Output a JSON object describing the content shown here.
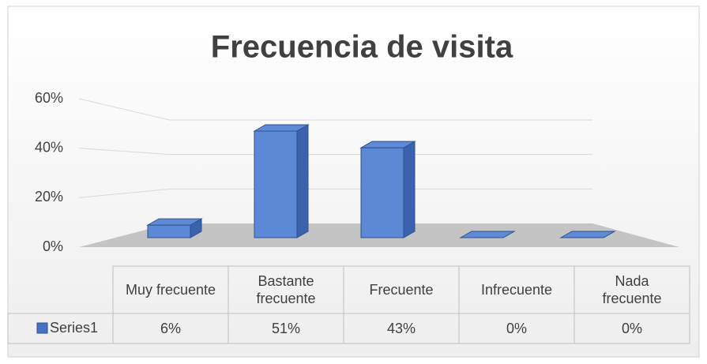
{
  "chart_data": {
    "type": "bar3d",
    "title": "Frecuencia de visita",
    "categories": [
      "Muy frecuente",
      "Bastante frecuente",
      "Frecuente",
      "Infrecuente",
      "Nada frecuente"
    ],
    "series": [
      {
        "name": "Series1",
        "color": "#4472c4",
        "values": [
          6,
          51,
          43,
          0,
          0
        ],
        "value_labels": [
          "6%",
          "51%",
          "43%",
          "0%",
          "0%"
        ]
      }
    ],
    "ylim": [
      0,
      60
    ],
    "yticks": [
      {
        "value": 0,
        "label": "0%"
      },
      {
        "value": 20,
        "label": "20%"
      },
      {
        "value": 40,
        "label": "40%"
      },
      {
        "value": 60,
        "label": "60%"
      }
    ],
    "grid": true,
    "data_table": true
  }
}
